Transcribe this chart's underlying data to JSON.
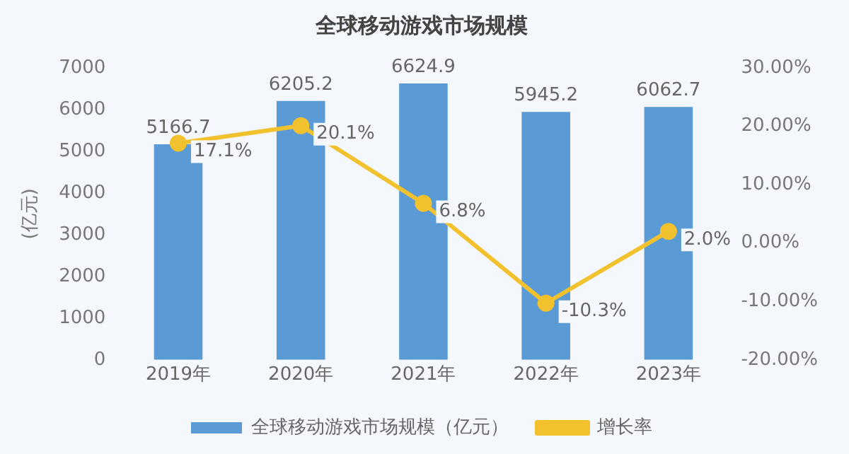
{
  "chart_data": {
    "type": "bar",
    "title": "全球移动游戏市场规模",
    "ylabel": "(亿元)",
    "categories": [
      "2019年",
      "2020年",
      "2021年",
      "2022年",
      "2023年"
    ],
    "series": [
      {
        "name": "全球移动游戏市场规模（亿元）",
        "color": "#5b9bd5",
        "values": [
          5166.7,
          6205.2,
          6624.9,
          5945.2,
          6062.7
        ],
        "value_labels": [
          "5166.7",
          "6205.2",
          "6624.9",
          "5945.2",
          "6062.7"
        ]
      },
      {
        "name": "增长率",
        "type": "line",
        "axis": "y2",
        "color": "#f2c12e",
        "marker": "circle",
        "values": [
          17.1,
          20.1,
          6.8,
          -10.3,
          2.0
        ],
        "value_labels": [
          "17.1%",
          "20.1%",
          "6.8%",
          "-10.3%",
          "2.0%"
        ]
      }
    ],
    "ylim": [
      0,
      7000
    ],
    "yticks": [
      0,
      1000,
      2000,
      3000,
      4000,
      5000,
      6000,
      7000
    ],
    "y2lim": [
      -20,
      30
    ],
    "y2ticks": [
      {
        "value": -20,
        "label": "-20.00%"
      },
      {
        "value": -10,
        "label": "-10.00%"
      },
      {
        "value": 0,
        "label": "0.00%"
      },
      {
        "value": 10,
        "label": "10.00%"
      },
      {
        "value": 20,
        "label": "20.00%"
      },
      {
        "value": 30,
        "label": "30.00%"
      }
    ],
    "grid": false,
    "legend": "bottom"
  }
}
